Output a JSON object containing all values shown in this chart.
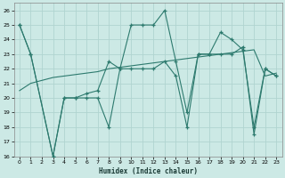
{
  "xlabel": "Humidex (Indice chaleur)",
  "xlim": [
    -0.5,
    23.5
  ],
  "ylim": [
    16,
    26.5
  ],
  "yticks": [
    16,
    17,
    18,
    19,
    20,
    21,
    22,
    23,
    24,
    25,
    26
  ],
  "xticks": [
    0,
    1,
    2,
    3,
    4,
    5,
    6,
    7,
    8,
    9,
    10,
    11,
    12,
    13,
    14,
    15,
    16,
    17,
    18,
    19,
    20,
    21,
    22,
    23
  ],
  "bg_color": "#cce9e5",
  "grid_color": "#b0d4d0",
  "line_color": "#2d7a6e",
  "series1_x": [
    0,
    1,
    3,
    4,
    5,
    6,
    7,
    8,
    9,
    10,
    11,
    12,
    13,
    14,
    15,
    16,
    17,
    18,
    19,
    20,
    21,
    22,
    23
  ],
  "series1_y": [
    25,
    23,
    16,
    20,
    20,
    20,
    20,
    18,
    22,
    22,
    22,
    22,
    22.5,
    21.5,
    18,
    23,
    23,
    23,
    23,
    23.5,
    17.5,
    22,
    21.5
  ],
  "series2_x": [
    0,
    1,
    3,
    4,
    5,
    6,
    7,
    8,
    9,
    10,
    11,
    12,
    13,
    14,
    15,
    16,
    17,
    18,
    19,
    20,
    21,
    22,
    23
  ],
  "series2_y": [
    25,
    23,
    16,
    20,
    20,
    20.3,
    20.5,
    22.5,
    22,
    25,
    25,
    25,
    26,
    22.5,
    19,
    23,
    23,
    24.5,
    24,
    23.3,
    18,
    22,
    21.5
  ],
  "series3_x": [
    0,
    1,
    2,
    3,
    4,
    5,
    6,
    7,
    8,
    9,
    10,
    11,
    12,
    13,
    14,
    15,
    16,
    17,
    18,
    19,
    20,
    21,
    22,
    23
  ],
  "series3_y": [
    20.5,
    21.0,
    21.2,
    21.4,
    21.5,
    21.6,
    21.7,
    21.8,
    22.0,
    22.1,
    22.2,
    22.3,
    22.4,
    22.5,
    22.6,
    22.7,
    22.8,
    22.9,
    23.0,
    23.1,
    23.2,
    23.3,
    21.5,
    21.7
  ]
}
